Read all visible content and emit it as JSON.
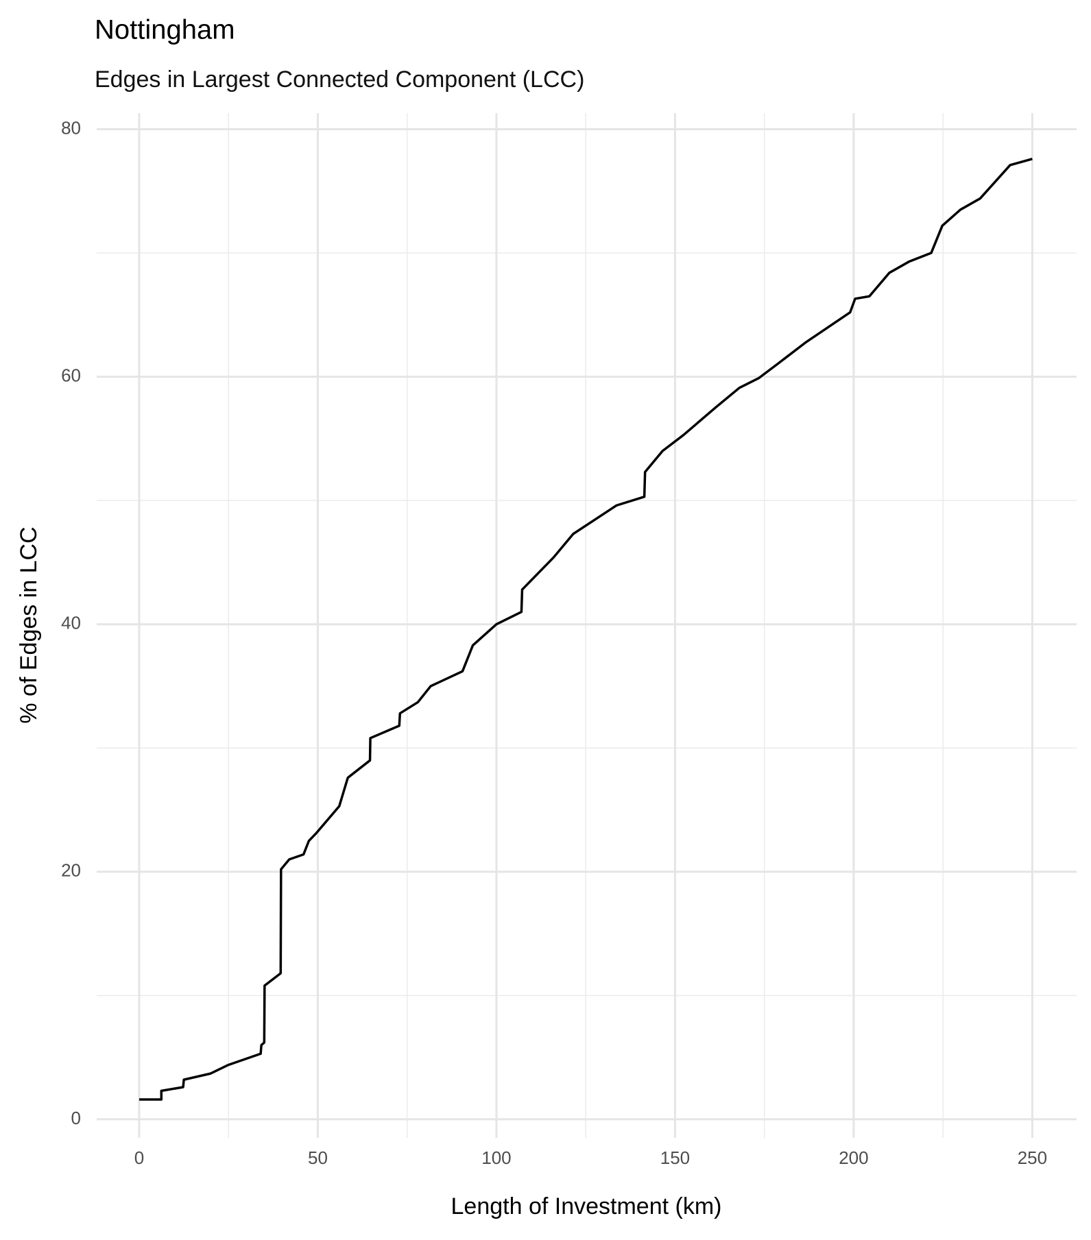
{
  "chart_data": {
    "type": "line",
    "title": "Nottingham",
    "subtitle": "Edges in Largest Connected Component (LCC)",
    "x_label": "Length of Investment (km)",
    "y_label": "% of Edges in LCC",
    "x": [
      0,
      6.2,
      6.2,
      12.3,
      12.5,
      20,
      25,
      34,
      34.2,
      35,
      35.1,
      39.6,
      39.7,
      42,
      46,
      47.5,
      49.5,
      56,
      58.4,
      64.6,
      64.7,
      72.8,
      73,
      78,
      81.6,
      90.5,
      93.4,
      100,
      107,
      107.2,
      116,
      121.5,
      133.6,
      141.4,
      141.6,
      146.5,
      152.4,
      161.3,
      168,
      173.5,
      179,
      186.7,
      199,
      200.4,
      204.4,
      210,
      215.5,
      221.7,
      224.8,
      229.9,
      235.4,
      243.8,
      250
    ],
    "series": [
      {
        "name": "LCC",
        "color": "#000000",
        "values": [
          1.6,
          1.6,
          2.3,
          2.6,
          3.2,
          3.7,
          4.4,
          5.3,
          6.0,
          6.2,
          10.8,
          11.8,
          20.2,
          21.0,
          21.4,
          22.5,
          23.1,
          25.3,
          27.6,
          29.0,
          30.8,
          31.8,
          32.8,
          33.7,
          35.0,
          36.2,
          38.3,
          40.0,
          41.0,
          42.8,
          45.4,
          47.3,
          49.6,
          50.3,
          52.3,
          54.0,
          55.3,
          57.5,
          59.1,
          59.9,
          61.1,
          62.8,
          65.2,
          66.3,
          66.5,
          68.4,
          69.3,
          70.0,
          72.2,
          73.5,
          74.4,
          77.1,
          77.6
        ]
      }
    ],
    "xlim": [
      -11.9,
      262.4
    ],
    "ylim": [
      -1.5,
      81.3
    ],
    "xticks": [
      0,
      50,
      100,
      150,
      200,
      250
    ],
    "yticks": [
      0,
      20,
      40,
      60,
      80
    ],
    "xminorticks": [
      25,
      75,
      125,
      175,
      225
    ],
    "yminorticks": [
      10,
      30,
      50,
      70
    ],
    "grid": true
  }
}
